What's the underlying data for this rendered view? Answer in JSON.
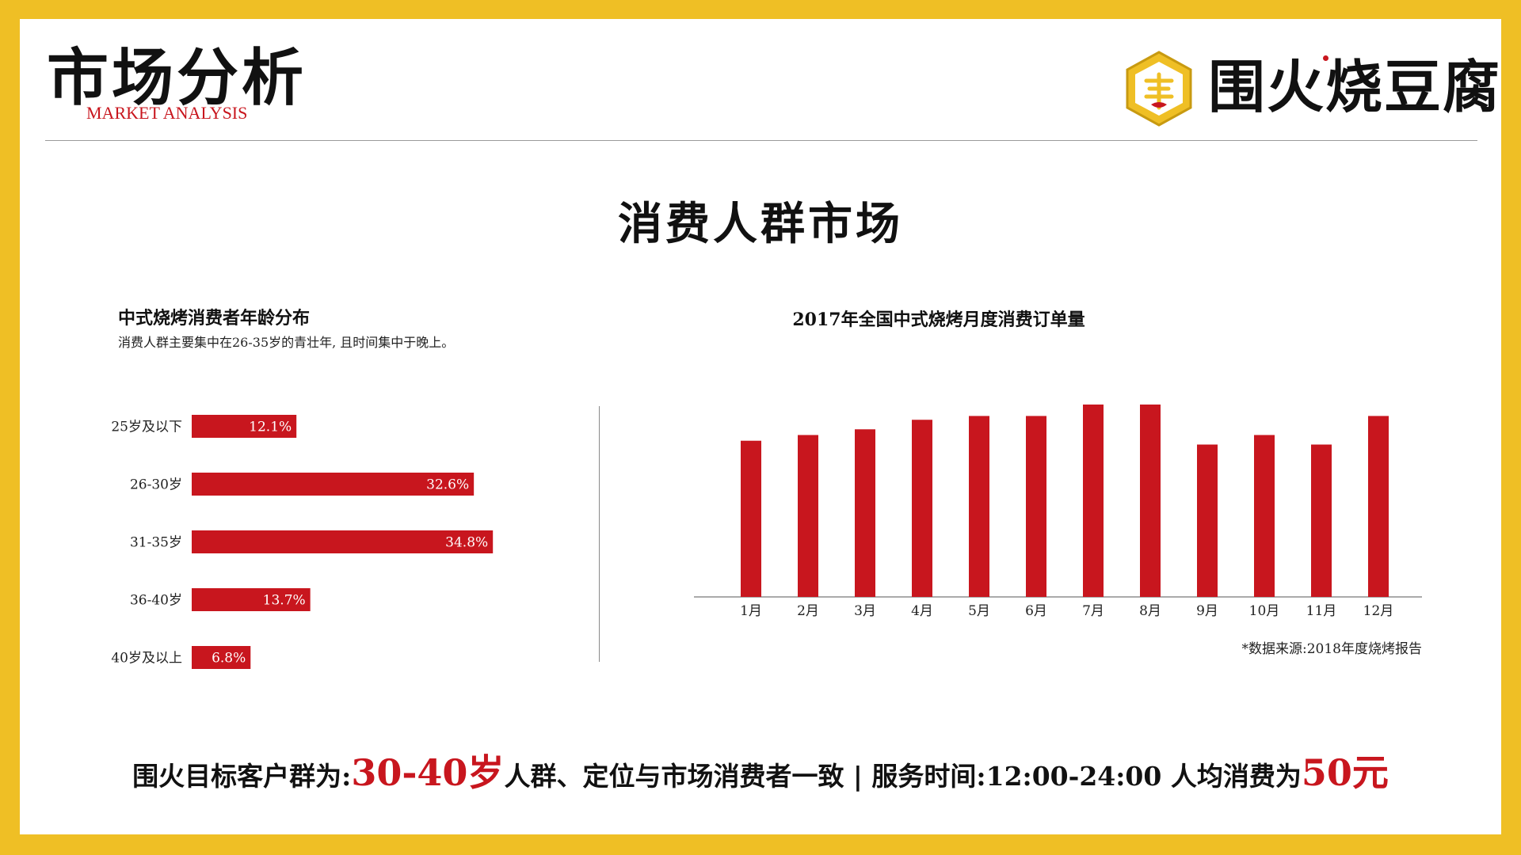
{
  "header": {
    "title": "市场分析",
    "subtitle": "MARKET ANALYSIS",
    "brand_name": "围火烧豆腐"
  },
  "section_title": "消费人群市场",
  "left_chart_title": "中式烧烤消费者年龄分布",
  "left_chart_subtitle": "消费人群主要集中在26-35岁的青壮年, 且时间集中于晚上。",
  "right_chart_title": "2017年全国中式烧烤月度消费订单量",
  "source_note": "*数据来源:2018年度烧烤报告",
  "bottom": {
    "part1": "围火目标客户群为:",
    "highlight1": "30-40岁",
    "part2": "人群、定位与市场消费者一致 | 服务时间:12:00-24:00  人均消费为",
    "highlight2": "50元"
  },
  "colors": {
    "frame": "#efbf25",
    "accent": "#c8161e",
    "bar": "#c8161e"
  },
  "chart_data": [
    {
      "type": "bar",
      "orientation": "horizontal",
      "title": "中式烧烤消费者年龄分布",
      "categories": [
        "25岁及以下",
        "26-30岁",
        "31-35岁",
        "36-40岁",
        "40岁及以上"
      ],
      "values": [
        12.1,
        32.6,
        34.8,
        13.7,
        6.8
      ],
      "value_labels": [
        "12.1%",
        "32.6%",
        "34.8%",
        "13.7%",
        "6.8%"
      ],
      "unit": "%"
    },
    {
      "type": "bar",
      "orientation": "vertical",
      "title": "2017年全国中式烧烤月度消费订单量",
      "categories": [
        "1月",
        "2月",
        "3月",
        "4月",
        "5月",
        "6月",
        "7月",
        "8月",
        "9月",
        "10月",
        "11月",
        "12月"
      ],
      "values": [
        82,
        85,
        88,
        93,
        95,
        95,
        101,
        101,
        80,
        85,
        80,
        95
      ],
      "ylim": [
        0,
        101
      ],
      "grid": false
    }
  ]
}
